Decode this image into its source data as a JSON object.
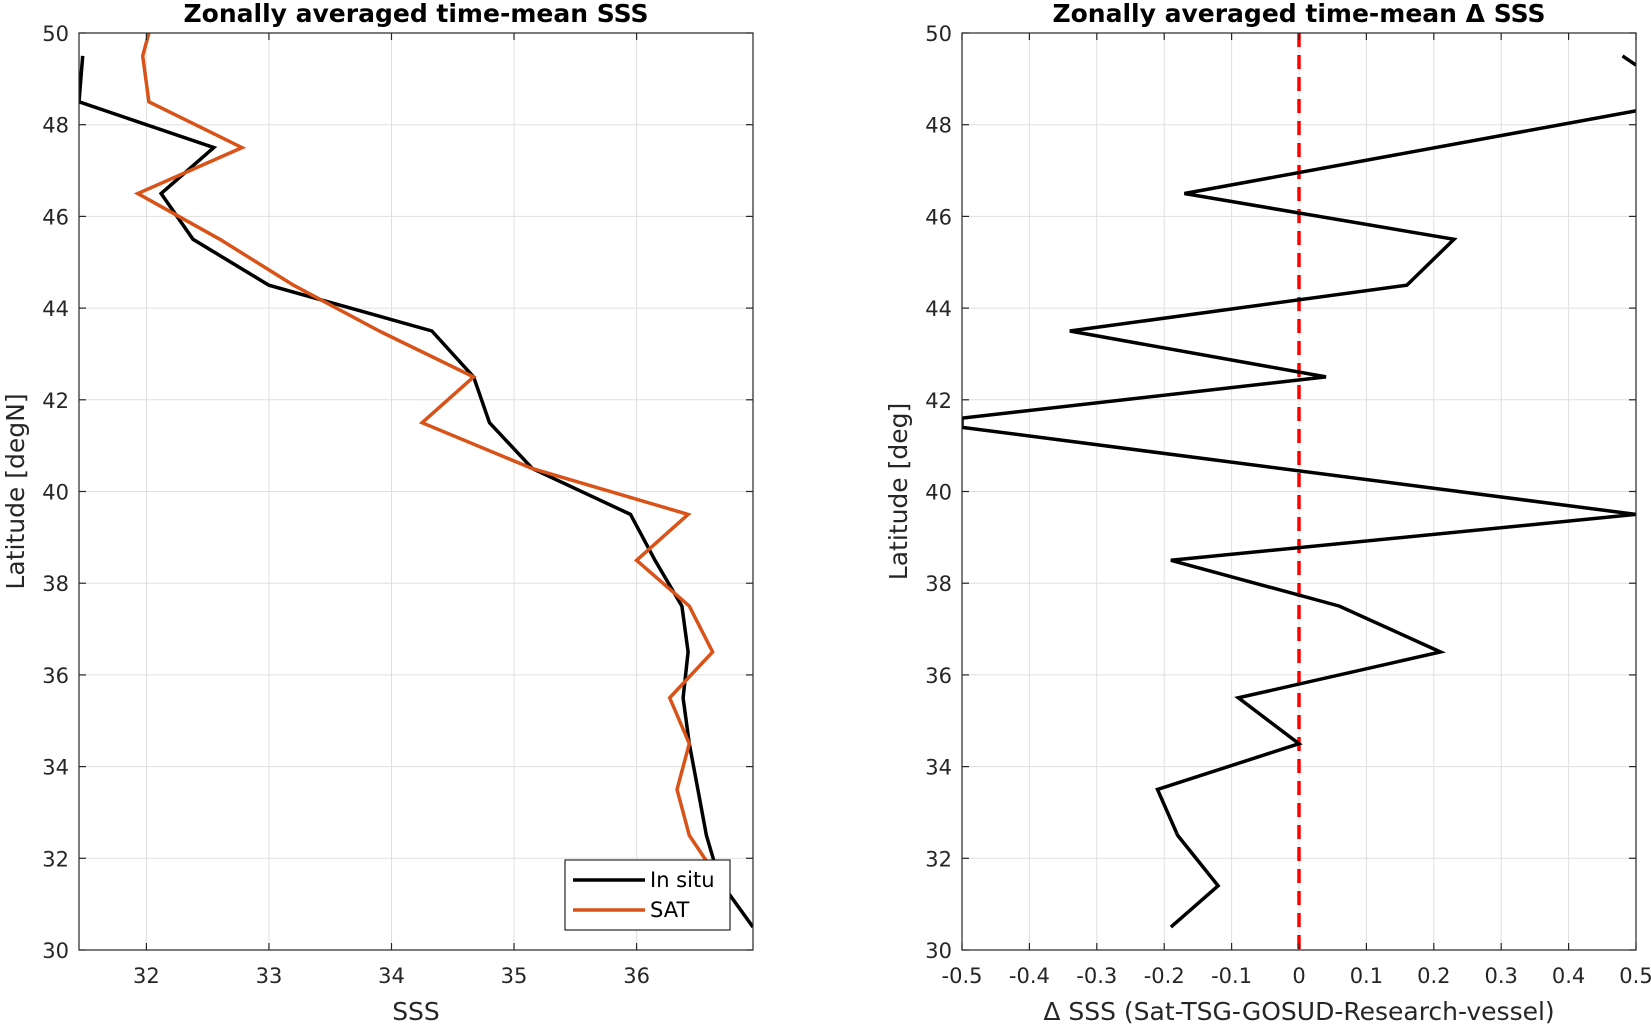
{
  "chart_data": [
    {
      "type": "line",
      "title": "Zonally averaged time-mean SSS",
      "xlabel": "SSS",
      "ylabel": "Latitude [degN]",
      "xlim": [
        31.45,
        36.95
      ],
      "ylim": [
        30,
        50
      ],
      "xticks": [
        32,
        33,
        34,
        35,
        36
      ],
      "yticks": [
        30,
        32,
        34,
        36,
        38,
        40,
        42,
        44,
        46,
        48,
        50
      ],
      "grid": true,
      "legend": "bottom-right",
      "series": [
        {
          "name": "In situ",
          "color": "#000000",
          "points": [
            [
              36.95,
              30.5
            ],
            [
              36.68,
              31.5
            ],
            [
              36.57,
              32.5
            ],
            [
              36.5,
              33.5
            ],
            [
              36.43,
              34.5
            ],
            [
              36.38,
              35.5
            ],
            [
              36.42,
              36.5
            ],
            [
              36.37,
              37.5
            ],
            [
              36.15,
              38.5
            ],
            [
              35.95,
              39.5
            ],
            [
              35.15,
              40.5
            ],
            [
              34.8,
              41.5
            ],
            [
              34.67,
              42.5
            ],
            [
              34.33,
              43.5
            ],
            [
              33.0,
              44.5
            ],
            [
              32.38,
              45.5
            ],
            [
              32.12,
              46.5
            ],
            [
              32.55,
              47.5
            ],
            [
              31.45,
              48.5
            ],
            [
              31.48,
              49.5
            ]
          ]
        },
        {
          "name": "SAT",
          "color": "#d95319",
          "points": [
            [
              36.58,
              31.9
            ],
            [
              36.43,
              32.5
            ],
            [
              36.33,
              33.5
            ],
            [
              36.43,
              34.5
            ],
            [
              36.27,
              35.5
            ],
            [
              36.62,
              36.5
            ],
            [
              36.43,
              37.5
            ],
            [
              36.0,
              38.5
            ],
            [
              36.42,
              39.5
            ],
            [
              35.15,
              40.5
            ],
            [
              34.25,
              41.5
            ],
            [
              34.67,
              42.5
            ],
            [
              33.9,
              43.5
            ],
            [
              33.2,
              44.5
            ],
            [
              32.6,
              45.5
            ],
            [
              31.93,
              46.5
            ],
            [
              32.78,
              47.5
            ],
            [
              32.02,
              48.5
            ],
            [
              31.97,
              49.5
            ],
            [
              32.02,
              50.0
            ]
          ]
        }
      ]
    },
    {
      "type": "line",
      "title": "Zonally averaged time-mean Δ SSS",
      "xlabel": "Δ SSS (Sat-TSG-GOSUD-Research-vessel)",
      "ylabel": "Latitude [deg]",
      "xlim": [
        -0.5,
        0.5
      ],
      "ylim": [
        30,
        50
      ],
      "xticks": [
        -0.5,
        -0.4,
        -0.3,
        -0.2,
        -0.1,
        0,
        0.1,
        0.2,
        0.3,
        0.4,
        0.5
      ],
      "xtick_labels": [
        "-0.5",
        "-0.4",
        "-0.3",
        "-0.2",
        "-0.1",
        "0",
        "0.1",
        "0.2",
        "0.3",
        "0.4",
        "0.5"
      ],
      "yticks": [
        30,
        32,
        34,
        36,
        38,
        40,
        42,
        44,
        46,
        48,
        50
      ],
      "grid": true,
      "reference_line": {
        "x": 0,
        "color": "#ff0000",
        "style": "dashed"
      },
      "series": [
        {
          "color": "#000000",
          "points": [
            [
              -0.19,
              30.5
            ],
            [
              -0.12,
              31.4
            ],
            [
              -0.18,
              32.5
            ],
            [
              -0.21,
              33.5
            ],
            [
              0.0,
              34.5
            ],
            [
              -0.09,
              35.5
            ],
            [
              0.21,
              36.5
            ],
            [
              0.06,
              37.5
            ],
            [
              -0.19,
              38.5
            ],
            [
              0.5,
              39.5
            ],
            [
              -0.5,
              41.4
            ],
            [
              -0.5,
              41.6
            ],
            [
              0.04,
              42.5
            ],
            [
              -0.34,
              43.5
            ],
            [
              0.16,
              44.5
            ],
            [
              0.23,
              45.5
            ],
            [
              -0.17,
              46.5
            ],
            [
              0.5,
              48.3
            ]
          ]
        },
        {
          "color": "#000000",
          "points": [
            [
              0.48,
              49.5
            ],
            [
              0.5,
              49.3
            ]
          ]
        }
      ]
    }
  ]
}
